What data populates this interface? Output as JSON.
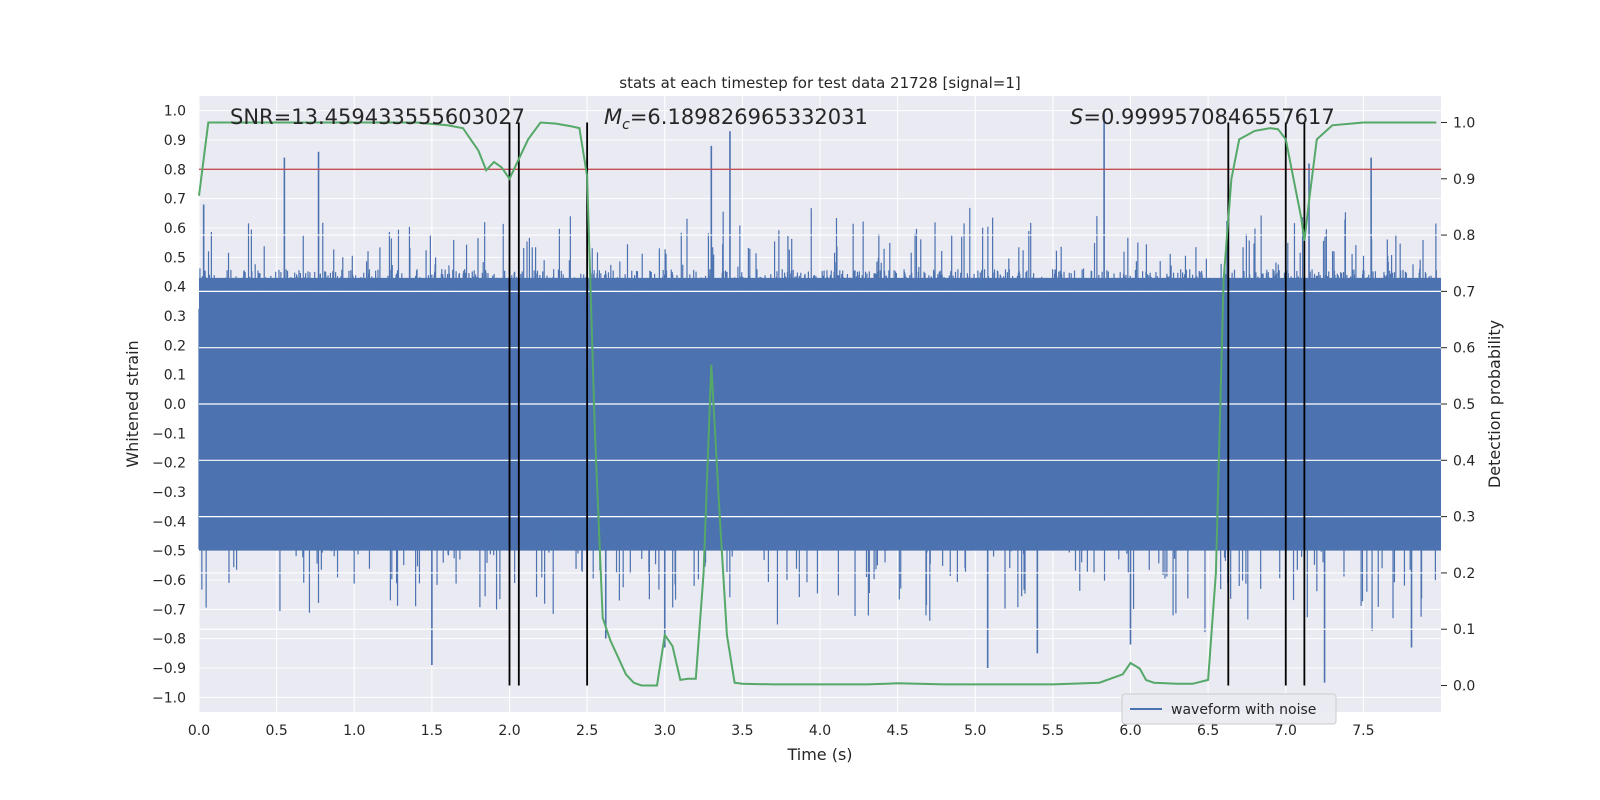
{
  "chart_data": {
    "type": "line",
    "title": "stats at each timestep for test data 21728 [signal=1]",
    "xlabel": "Time (s)",
    "ylabel": "Whitened strain",
    "y2label": "Detection probability",
    "xlim": [
      0.0,
      8.0
    ],
    "ylim": [
      -1.05,
      1.05
    ],
    "y2lim": [
      -0.047,
      1.047
    ],
    "x_ticks": [
      "0.0",
      "0.5",
      "1.0",
      "1.5",
      "2.0",
      "2.5",
      "3.0",
      "3.5",
      "4.0",
      "4.5",
      "5.0",
      "5.5",
      "6.0",
      "6.5",
      "7.0",
      "7.5"
    ],
    "y_ticks": [
      "1.0",
      "0.9",
      "0.8",
      "0.7",
      "0.6",
      "0.5",
      "0.4",
      "0.3",
      "0.2",
      "0.1",
      "0.0",
      "-0.1",
      "-0.2",
      "-0.3",
      "-0.4",
      "-0.5",
      "-0.6",
      "-0.7",
      "-0.8",
      "-0.9",
      "-1.0"
    ],
    "y2_ticks": [
      "1.0",
      "0.9",
      "0.8",
      "0.7",
      "0.6",
      "0.5",
      "0.4",
      "0.3",
      "0.2",
      "0.1",
      "0.0"
    ],
    "annotations": {
      "snr": "SNR=13.459433555603027",
      "mc_symbol": "M",
      "mc_sub": "c",
      "mc_value": "=6.189826965332031",
      "s_symbol": "S",
      "s_value": "=0.9999570846557617"
    },
    "threshold_line": {
      "y": 0.8,
      "color": "#c44e52"
    },
    "vertical_markers": [
      2.0,
      2.06,
      2.5,
      6.63,
      7.0,
      7.12
    ],
    "series": [
      {
        "name": "waveform with noise",
        "color": "#4c72b0",
        "axis": "left",
        "envelope_base": [
          0.43,
          -0.5
        ],
        "notable_peaks": [
          {
            "x": 0.55,
            "y": 0.84
          },
          {
            "x": 0.77,
            "y": 0.86
          },
          {
            "x": 0.03,
            "y": 0.68
          },
          {
            "x": 1.5,
            "y": -0.89
          },
          {
            "x": 3.42,
            "y": 0.93
          },
          {
            "x": 3.3,
            "y": 0.88
          },
          {
            "x": 3.0,
            "y": -0.83
          },
          {
            "x": 2.62,
            "y": -0.8
          },
          {
            "x": 5.83,
            "y": 0.99
          },
          {
            "x": 5.08,
            "y": -0.9
          },
          {
            "x": 5.4,
            "y": -0.85
          },
          {
            "x": 6.0,
            "y": -0.82
          },
          {
            "x": 6.63,
            "y": 0.82
          },
          {
            "x": 7.15,
            "y": 0.82
          },
          {
            "x": 7.25,
            "y": -0.95
          },
          {
            "x": 7.55,
            "y": 0.84
          },
          {
            "x": 7.81,
            "y": -0.83
          }
        ]
      },
      {
        "name": "detection probability",
        "color": "#55a868",
        "axis": "right",
        "x": [
          0.0,
          0.06,
          0.2,
          0.4,
          0.6,
          0.8,
          1.0,
          1.2,
          1.4,
          1.6,
          1.7,
          1.75,
          1.8,
          1.85,
          1.9,
          1.95,
          2.0,
          2.06,
          2.12,
          2.2,
          2.3,
          2.4,
          2.45,
          2.5,
          2.55,
          2.6,
          2.65,
          2.7,
          2.75,
          2.8,
          2.85,
          2.9,
          2.95,
          3.0,
          3.05,
          3.1,
          3.15,
          3.2,
          3.25,
          3.3,
          3.35,
          3.4,
          3.45,
          3.5,
          3.7,
          4.0,
          4.3,
          4.5,
          4.8,
          5.0,
          5.5,
          5.8,
          5.95,
          6.0,
          6.06,
          6.1,
          6.15,
          6.3,
          6.4,
          6.5,
          6.55,
          6.6,
          6.65,
          6.7,
          6.8,
          6.9,
          6.95,
          7.0,
          7.05,
          7.1,
          7.12,
          7.15,
          7.2,
          7.3,
          7.5,
          7.8,
          7.97
        ],
        "values": [
          0.87,
          1.0,
          1.0,
          1.0,
          1.0,
          1.0,
          1.0,
          1.0,
          1.0,
          0.995,
          0.99,
          0.97,
          0.95,
          0.915,
          0.93,
          0.92,
          0.9,
          0.935,
          0.97,
          1.0,
          0.998,
          0.993,
          0.99,
          0.905,
          0.45,
          0.12,
          0.08,
          0.05,
          0.02,
          0.005,
          0.0,
          0.0,
          0.0,
          0.09,
          0.07,
          0.01,
          0.012,
          0.012,
          0.2,
          0.57,
          0.32,
          0.09,
          0.005,
          0.003,
          0.002,
          0.002,
          0.002,
          0.004,
          0.002,
          0.002,
          0.002,
          0.005,
          0.02,
          0.04,
          0.03,
          0.01,
          0.005,
          0.003,
          0.003,
          0.01,
          0.2,
          0.72,
          0.9,
          0.97,
          0.985,
          0.99,
          0.988,
          0.97,
          0.9,
          0.83,
          0.79,
          0.86,
          0.97,
          0.995,
          1.0,
          1.0,
          1.0
        ]
      }
    ],
    "legend": {
      "entries": [
        "waveform with noise"
      ],
      "location": "bottom-right"
    }
  }
}
